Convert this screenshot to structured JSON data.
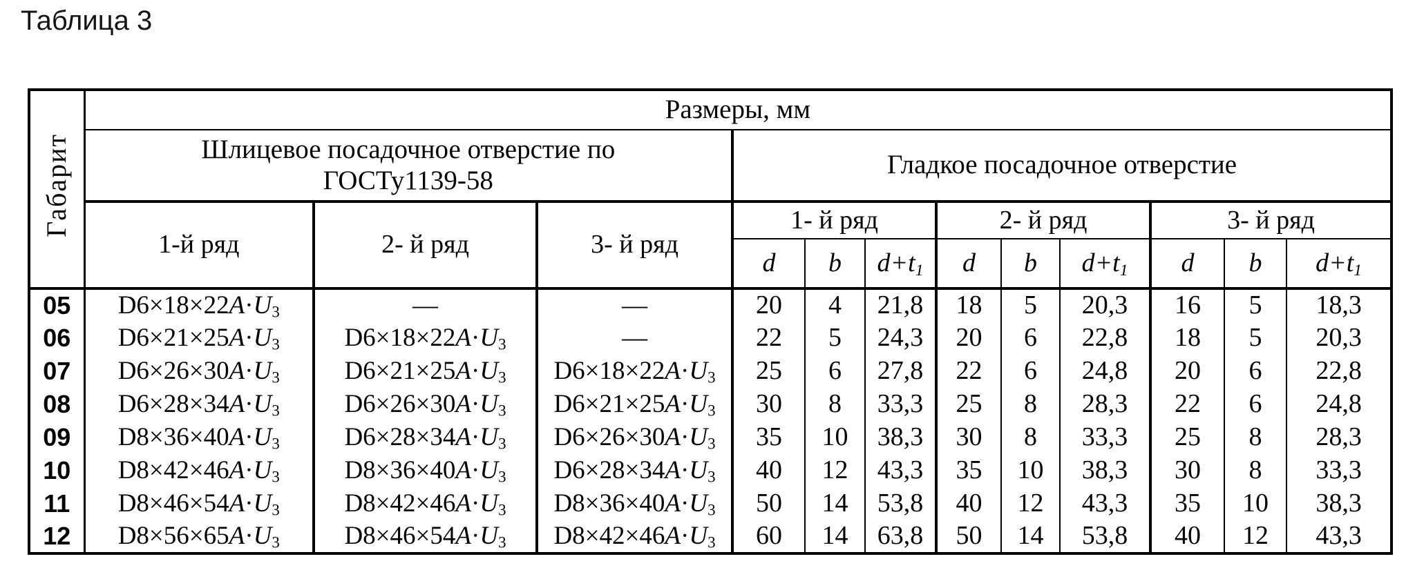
{
  "page_title": "Таблица 3",
  "table": {
    "corner_label": "Габарит",
    "top_header": "Размеры, мм",
    "section_spline": {
      "title": "Шлицевое посадочное отверстие по ГОСТу1139-58",
      "columns": [
        "1-й ряд",
        "2- й ряд",
        "3- й ряд"
      ]
    },
    "section_smooth": {
      "title": "Гладкое посадочное отверстие",
      "groups": [
        "1- й ряд",
        "2- й ряд",
        "3- й ряд"
      ],
      "sub_columns": [
        "d",
        "b",
        "d+t1"
      ]
    },
    "rows": [
      {
        "gabarit": "05",
        "spline": [
          "D6×18×22A·U3",
          "—",
          "—"
        ],
        "smooth": [
          "20",
          "4",
          "21,8",
          "18",
          "5",
          "20,3",
          "16",
          "5",
          "18,3"
        ]
      },
      {
        "gabarit": "06",
        "spline": [
          "D6×21×25A·U3",
          "D6×18×22A·U3",
          "—"
        ],
        "smooth": [
          "22",
          "5",
          "24,3",
          "20",
          "6",
          "22,8",
          "18",
          "5",
          "20,3"
        ]
      },
      {
        "gabarit": "07",
        "spline": [
          "D6×26×30A·U3",
          "D6×21×25A·U3",
          "D6×18×22A·U3"
        ],
        "smooth": [
          "25",
          "6",
          "27,8",
          "22",
          "6",
          "24,8",
          "20",
          "6",
          "22,8"
        ]
      },
      {
        "gabarit": "08",
        "spline": [
          "D6×28×34A·U3",
          "D6×26×30A·U3",
          "D6×21×25A·U3"
        ],
        "smooth": [
          "30",
          "8",
          "33,3",
          "25",
          "8",
          "28,3",
          "22",
          "6",
          "24,8"
        ]
      },
      {
        "gabarit": "09",
        "spline": [
          "D8×36×40A·U3",
          "D6×28×34A·U3",
          "D6×26×30A·U3"
        ],
        "smooth": [
          "35",
          "10",
          "38,3",
          "30",
          "8",
          "33,3",
          "25",
          "8",
          "28,3"
        ]
      },
      {
        "gabarit": "10",
        "spline": [
          "D8×42×46A·U3",
          "D8×36×40A·U3",
          "D6×28×34A·U3"
        ],
        "smooth": [
          "40",
          "12",
          "43,3",
          "35",
          "10",
          "38,3",
          "30",
          "8",
          "33,3"
        ]
      },
      {
        "gabarit": "11",
        "spline": [
          "D8×46×54A·U3",
          "D8×42×46A·U3",
          "D8×36×40A·U3"
        ],
        "smooth": [
          "50",
          "14",
          "53,8",
          "40",
          "12",
          "43,3",
          "35",
          "10",
          "38,3"
        ]
      },
      {
        "gabarit": "12",
        "spline": [
          "D8×56×65A·U3",
          "D8×46×54A·U3",
          "D8×42×46A·U3"
        ],
        "smooth": [
          "60",
          "14",
          "63,8",
          "50",
          "14",
          "53,8",
          "40",
          "12",
          "43,3"
        ]
      }
    ]
  }
}
